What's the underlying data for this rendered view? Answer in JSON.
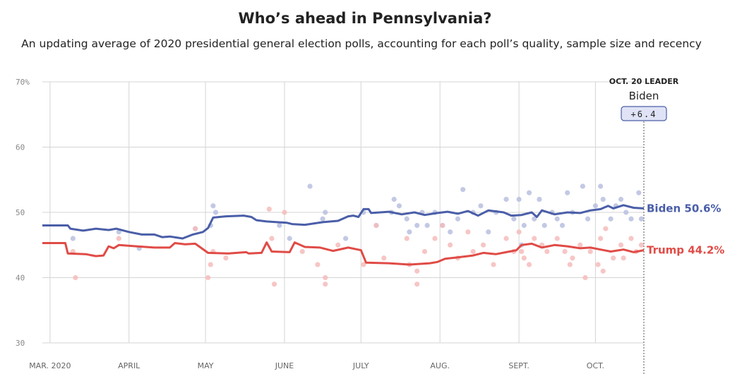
{
  "header": {
    "title": "Who’s ahead in Pennsylvania?",
    "subtitle": "An updating average of 2020 presidential general election polls, accounting for each poll’s quality, sample size and recency"
  },
  "chart_data": {
    "type": "line",
    "y_ticks": [
      {
        "value": 70,
        "label": "70%"
      },
      {
        "value": 60,
        "label": "60"
      },
      {
        "value": 50,
        "label": "50"
      },
      {
        "value": 40,
        "label": "40"
      },
      {
        "value": 30,
        "label": "30"
      }
    ],
    "ylim": [
      30,
      70
    ],
    "x_range": [
      "2020-02-27",
      "2020-10-20"
    ],
    "x_ticks": [
      {
        "date": "2020-03-01",
        "label": "MAR. 2020"
      },
      {
        "date": "2020-04-01",
        "label": "APRIL"
      },
      {
        "date": "2020-05-01",
        "label": "MAY"
      },
      {
        "date": "2020-06-01",
        "label": "JUNE"
      },
      {
        "date": "2020-07-01",
        "label": "JULY"
      },
      {
        "date": "2020-08-01",
        "label": "AUG."
      },
      {
        "date": "2020-09-01",
        "label": "SEPT."
      },
      {
        "date": "2020-10-01",
        "label": "OCT."
      }
    ],
    "grid": true,
    "leader": {
      "date": "2020-10-20",
      "heading": "OCT. 20 LEADER",
      "name": "Biden",
      "margin": "+6.4"
    },
    "series": [
      {
        "name": "Biden",
        "end_label": "Biden 50.6%",
        "color": "#4a5ea8",
        "dot_color": "#b8bfdf",
        "line": [
          [
            "2020-02-27",
            48.0
          ],
          [
            "2020-03-08",
            48.0
          ],
          [
            "2020-03-09",
            47.5
          ],
          [
            "2020-03-14",
            47.2
          ],
          [
            "2020-03-19",
            47.5
          ],
          [
            "2020-03-24",
            47.3
          ],
          [
            "2020-03-27",
            47.5
          ],
          [
            "2020-04-01",
            47.0
          ],
          [
            "2020-04-06",
            46.6
          ],
          [
            "2020-04-11",
            46.6
          ],
          [
            "2020-04-14",
            46.2
          ],
          [
            "2020-04-17",
            46.3
          ],
          [
            "2020-04-22",
            46.0
          ],
          [
            "2020-04-26",
            46.6
          ],
          [
            "2020-04-30",
            47.0
          ],
          [
            "2020-05-02",
            47.6
          ],
          [
            "2020-05-04",
            49.2
          ],
          [
            "2020-05-09",
            49.4
          ],
          [
            "2020-05-16",
            49.5
          ],
          [
            "2020-05-19",
            49.3
          ],
          [
            "2020-05-21",
            48.8
          ],
          [
            "2020-05-25",
            48.6
          ],
          [
            "2020-06-02",
            48.4
          ],
          [
            "2020-06-04",
            48.2
          ],
          [
            "2020-06-09",
            48.1
          ],
          [
            "2020-06-16",
            48.5
          ],
          [
            "2020-06-22",
            48.7
          ],
          [
            "2020-06-26",
            49.4
          ],
          [
            "2020-06-28",
            49.5
          ],
          [
            "2020-06-30",
            49.3
          ],
          [
            "2020-07-02",
            50.5
          ],
          [
            "2020-07-04",
            50.5
          ],
          [
            "2020-07-05",
            49.9
          ],
          [
            "2020-07-12",
            50.1
          ],
          [
            "2020-07-17",
            49.7
          ],
          [
            "2020-07-22",
            50.0
          ],
          [
            "2020-07-26",
            49.6
          ],
          [
            "2020-07-31",
            49.9
          ],
          [
            "2020-08-04",
            50.1
          ],
          [
            "2020-08-08",
            49.8
          ],
          [
            "2020-08-12",
            50.2
          ],
          [
            "2020-08-16",
            49.5
          ],
          [
            "2020-08-20",
            50.3
          ],
          [
            "2020-08-26",
            50.0
          ],
          [
            "2020-08-29",
            49.5
          ],
          [
            "2020-09-02",
            49.6
          ],
          [
            "2020-09-06",
            50.0
          ],
          [
            "2020-09-08",
            49.3
          ],
          [
            "2020-09-10",
            50.3
          ],
          [
            "2020-09-15",
            49.7
          ],
          [
            "2020-09-20",
            50.0
          ],
          [
            "2020-09-25",
            49.9
          ],
          [
            "2020-09-29",
            50.3
          ],
          [
            "2020-10-03",
            50.5
          ],
          [
            "2020-10-06",
            51.0
          ],
          [
            "2020-10-08",
            50.6
          ],
          [
            "2020-10-12",
            51.1
          ],
          [
            "2020-10-16",
            50.7
          ],
          [
            "2020-10-20",
            50.6
          ]
        ],
        "polls": [
          [
            "2020-03-10",
            46.0
          ],
          [
            "2020-03-28",
            47.0
          ],
          [
            "2020-04-05",
            44.5
          ],
          [
            "2020-04-27",
            47.5
          ],
          [
            "2020-05-04",
            51.0
          ],
          [
            "2020-05-05",
            50.0
          ],
          [
            "2020-05-03",
            48.0
          ],
          [
            "2020-05-30",
            48.0
          ],
          [
            "2020-06-03",
            46.0
          ],
          [
            "2020-06-11",
            54.0
          ],
          [
            "2020-06-16",
            49.0
          ],
          [
            "2020-06-17",
            50.0
          ],
          [
            "2020-06-25",
            46.0
          ],
          [
            "2020-07-02",
            50.0
          ],
          [
            "2020-07-07",
            48.0
          ],
          [
            "2020-07-13",
            50.0
          ],
          [
            "2020-07-14",
            52.0
          ],
          [
            "2020-07-16",
            51.0
          ],
          [
            "2020-07-19",
            49.0
          ],
          [
            "2020-07-20",
            47.0
          ],
          [
            "2020-07-23",
            48.0
          ],
          [
            "2020-07-25",
            50.0
          ],
          [
            "2020-07-27",
            48.0
          ],
          [
            "2020-07-30",
            50.0
          ],
          [
            "2020-08-02",
            48.0
          ],
          [
            "2020-08-05",
            47.0
          ],
          [
            "2020-08-08",
            49.0
          ],
          [
            "2020-08-10",
            53.5
          ],
          [
            "2020-08-14",
            50.0
          ],
          [
            "2020-08-17",
            51.0
          ],
          [
            "2020-08-20",
            47.0
          ],
          [
            "2020-08-23",
            50.0
          ],
          [
            "2020-08-27",
            52.0
          ],
          [
            "2020-08-30",
            49.0
          ],
          [
            "2020-09-01",
            52.0
          ],
          [
            "2020-09-03",
            48.0
          ],
          [
            "2020-09-02",
            45.0
          ],
          [
            "2020-09-05",
            53.0
          ],
          [
            "2020-09-07",
            49.0
          ],
          [
            "2020-09-09",
            52.0
          ],
          [
            "2020-09-11",
            48.0
          ],
          [
            "2020-09-14",
            50.0
          ],
          [
            "2020-09-16",
            49.0
          ],
          [
            "2020-09-18",
            48.0
          ],
          [
            "2020-09-20",
            53.0
          ],
          [
            "2020-09-22",
            50.0
          ],
          [
            "2020-09-26",
            54.0
          ],
          [
            "2020-09-28",
            49.0
          ],
          [
            "2020-10-01",
            51.0
          ],
          [
            "2020-10-03",
            54.0
          ],
          [
            "2020-10-04",
            52.0
          ],
          [
            "2020-10-07",
            49.0
          ],
          [
            "2020-10-09",
            51.0
          ],
          [
            "2020-10-11",
            52.0
          ],
          [
            "2020-10-13",
            50.0
          ],
          [
            "2020-10-15",
            49.0
          ],
          [
            "2020-10-18",
            53.0
          ],
          [
            "2020-10-19",
            49.0
          ]
        ]
      },
      {
        "name": "Trump",
        "end_label": "Trump 44.2%",
        "color": "#e04b46",
        "dot_color": "#f5bcbb",
        "line": [
          [
            "2020-02-27",
            45.3
          ],
          [
            "2020-03-07",
            45.3
          ],
          [
            "2020-03-08",
            43.7
          ],
          [
            "2020-03-15",
            43.6
          ],
          [
            "2020-03-19",
            43.3
          ],
          [
            "2020-03-22",
            43.4
          ],
          [
            "2020-03-24",
            44.8
          ],
          [
            "2020-03-26",
            44.5
          ],
          [
            "2020-03-28",
            45.0
          ],
          [
            "2020-04-04",
            44.8
          ],
          [
            "2020-04-11",
            44.6
          ],
          [
            "2020-04-17",
            44.6
          ],
          [
            "2020-04-19",
            45.3
          ],
          [
            "2020-04-23",
            45.1
          ],
          [
            "2020-04-27",
            45.2
          ],
          [
            "2020-05-02",
            43.8
          ],
          [
            "2020-05-10",
            43.7
          ],
          [
            "2020-05-17",
            43.9
          ],
          [
            "2020-05-18",
            43.7
          ],
          [
            "2020-05-23",
            43.8
          ],
          [
            "2020-05-25",
            45.4
          ],
          [
            "2020-05-27",
            44.0
          ],
          [
            "2020-06-03",
            43.9
          ],
          [
            "2020-06-05",
            45.4
          ],
          [
            "2020-06-09",
            44.7
          ],
          [
            "2020-06-15",
            44.6
          ],
          [
            "2020-06-20",
            44.1
          ],
          [
            "2020-06-26",
            44.6
          ],
          [
            "2020-07-01",
            44.2
          ],
          [
            "2020-07-03",
            42.3
          ],
          [
            "2020-07-12",
            42.2
          ],
          [
            "2020-07-20",
            42.0
          ],
          [
            "2020-07-28",
            42.2
          ],
          [
            "2020-07-31",
            42.4
          ],
          [
            "2020-08-03",
            42.9
          ],
          [
            "2020-08-08",
            43.1
          ],
          [
            "2020-08-14",
            43.4
          ],
          [
            "2020-08-18",
            43.8
          ],
          [
            "2020-08-23",
            43.6
          ],
          [
            "2020-08-27",
            43.9
          ],
          [
            "2020-08-31",
            44.2
          ],
          [
            "2020-09-02",
            45.0
          ],
          [
            "2020-09-06",
            45.2
          ],
          [
            "2020-09-10",
            44.6
          ],
          [
            "2020-09-15",
            45.0
          ],
          [
            "2020-09-20",
            44.8
          ],
          [
            "2020-09-25",
            44.5
          ],
          [
            "2020-09-29",
            44.6
          ],
          [
            "2020-10-03",
            44.3
          ],
          [
            "2020-10-07",
            44.0
          ],
          [
            "2020-10-12",
            44.3
          ],
          [
            "2020-10-16",
            43.9
          ],
          [
            "2020-10-20",
            44.2
          ]
        ],
        "polls": [
          [
            "2020-03-10",
            44.0
          ],
          [
            "2020-03-11",
            40.0
          ],
          [
            "2020-03-28",
            46.0
          ],
          [
            "2020-04-27",
            47.5
          ],
          [
            "2020-05-02",
            40.0
          ],
          [
            "2020-05-03",
            42.0
          ],
          [
            "2020-05-04",
            44.0
          ],
          [
            "2020-05-09",
            43.0
          ],
          [
            "2020-05-26",
            50.5
          ],
          [
            "2020-05-27",
            46.0
          ],
          [
            "2020-05-28",
            39.0
          ],
          [
            "2020-06-01",
            50.0
          ],
          [
            "2020-06-08",
            44.0
          ],
          [
            "2020-06-14",
            42.0
          ],
          [
            "2020-06-17",
            40.0
          ],
          [
            "2020-06-17",
            39.0
          ],
          [
            "2020-06-22",
            45.0
          ],
          [
            "2020-07-02",
            42.0
          ],
          [
            "2020-07-07",
            48.0
          ],
          [
            "2020-07-10",
            43.0
          ],
          [
            "2020-07-19",
            46.0
          ],
          [
            "2020-07-20",
            42.0
          ],
          [
            "2020-07-23",
            41.0
          ],
          [
            "2020-07-23",
            39.0
          ],
          [
            "2020-07-26",
            44.0
          ],
          [
            "2020-07-30",
            46.0
          ],
          [
            "2020-08-02",
            48.0
          ],
          [
            "2020-08-05",
            45.0
          ],
          [
            "2020-08-08",
            43.0
          ],
          [
            "2020-08-12",
            47.0
          ],
          [
            "2020-08-14",
            44.0
          ],
          [
            "2020-08-18",
            45.0
          ],
          [
            "2020-08-22",
            42.0
          ],
          [
            "2020-08-27",
            46.0
          ],
          [
            "2020-08-30",
            44.0
          ],
          [
            "2020-09-01",
            47.0
          ],
          [
            "2020-09-02",
            44.0
          ],
          [
            "2020-09-03",
            43.0
          ],
          [
            "2020-09-05",
            42.0
          ],
          [
            "2020-09-07",
            46.0
          ],
          [
            "2020-09-10",
            45.0
          ],
          [
            "2020-09-12",
            44.0
          ],
          [
            "2020-09-16",
            46.0
          ],
          [
            "2020-09-19",
            44.0
          ],
          [
            "2020-09-21",
            42.0
          ],
          [
            "2020-09-22",
            43.0
          ],
          [
            "2020-09-25",
            45.0
          ],
          [
            "2020-09-27",
            40.0
          ],
          [
            "2020-09-29",
            44.0
          ],
          [
            "2020-10-02",
            42.0
          ],
          [
            "2020-10-03",
            46.0
          ],
          [
            "2020-10-04",
            41.0
          ],
          [
            "2020-10-05",
            47.5
          ],
          [
            "2020-10-08",
            43.0
          ],
          [
            "2020-10-11",
            45.0
          ],
          [
            "2020-10-12",
            43.0
          ],
          [
            "2020-10-15",
            46.0
          ],
          [
            "2020-10-17",
            44.0
          ],
          [
            "2020-10-19",
            45.0
          ]
        ]
      }
    ]
  }
}
